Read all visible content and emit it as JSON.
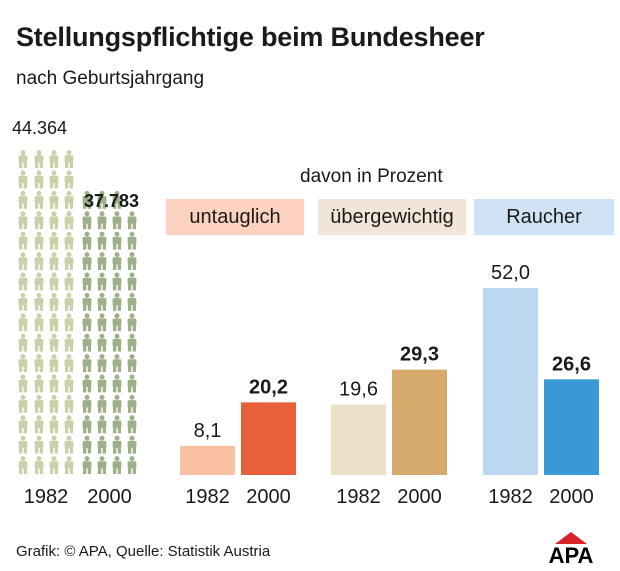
{
  "title": "Stellungspflichtige beim Bundesheer",
  "subtitle": "nach Geburtsjahrgang",
  "percent_heading": "davon in Prozent",
  "source": "Grafik: © APA, Quelle: Statistik Austria",
  "logo_text": "APA",
  "colors": {
    "untauglich_1982": "#f9c0a4",
    "untauglich_2000": "#e8603a",
    "uebergewichtig_1982": "#eedfc9",
    "uebergewichtig_2000": "#d6aa6d",
    "raucher_1982": "#bcd8f0",
    "raucher_2000": "#3999d6",
    "figure_1982": "#c8d2a8",
    "figure_2000": "#9db08a",
    "cat_untauglich_bg": "#fbd2bf",
    "cat_uebergewichtig_bg": "#f0e5d6",
    "cat_raucher_bg": "#cfe3f5"
  },
  "chart_data": [
    {
      "type": "bar",
      "categories": [
        "1982",
        "2000"
      ],
      "values": [
        44364,
        37783
      ],
      "value_labels": [
        "44.364",
        "37.783"
      ],
      "title": "",
      "xlabel": "",
      "ylabel": "",
      "ylim": [
        0,
        44364
      ],
      "icon": "person-icon"
    },
    {
      "type": "bar",
      "title": "davon in Prozent",
      "groups": [
        "untauglich",
        "übergewichtig",
        "Raucher"
      ],
      "categories": [
        "1982",
        "2000"
      ],
      "series": [
        {
          "name": "untauglich",
          "values": [
            8.1,
            20.2
          ],
          "labels": [
            "8,1",
            "20,2"
          ]
        },
        {
          "name": "übergewichtig",
          "values": [
            19.6,
            29.3
          ],
          "labels": [
            "19,6",
            "29,3"
          ]
        },
        {
          "name": "Raucher",
          "values": [
            52.0,
            26.6
          ],
          "labels": [
            "52,0",
            "26,6"
          ]
        }
      ],
      "xlabel": "",
      "ylabel": "",
      "ylim": [
        0,
        52.0
      ],
      "grid": false
    }
  ]
}
